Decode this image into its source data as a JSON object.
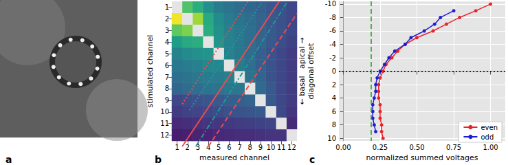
{
  "chart_data": [
    {
      "type": "image",
      "title": "a"
    },
    {
      "type": "heatmap",
      "title": "b",
      "xlabel": "measured channel",
      "ylabel": "stimulated channel",
      "x_categories": [
        "1",
        "2",
        "3",
        "4",
        "5",
        "6",
        "7",
        "8",
        "9",
        "10",
        "11",
        "12"
      ],
      "y_categories": [
        "1",
        "2",
        "3",
        "4",
        "5",
        "6",
        "7",
        "8",
        "9",
        "10",
        "11",
        "12"
      ],
      "color_range": [
        0,
        1
      ],
      "cells": [
        [
          null,
          0.72,
          0.62,
          0.5,
          0.42,
          0.38,
          0.35,
          0.33,
          0.3,
          0.28,
          0.25,
          0.22
        ],
        [
          0.98,
          null,
          0.85,
          0.6,
          0.48,
          0.42,
          0.38,
          0.35,
          0.32,
          0.28,
          0.25,
          0.22
        ],
        [
          0.75,
          0.8,
          null,
          0.62,
          0.5,
          0.44,
          0.4,
          0.36,
          0.32,
          0.28,
          0.25,
          0.22
        ],
        [
          0.55,
          0.6,
          0.62,
          null,
          0.52,
          0.45,
          0.4,
          0.36,
          0.32,
          0.28,
          0.24,
          0.2
        ],
        [
          0.45,
          0.48,
          0.5,
          0.52,
          null,
          0.45,
          0.4,
          0.35,
          0.3,
          0.26,
          0.22,
          0.18
        ],
        [
          0.4,
          0.42,
          0.44,
          0.46,
          0.46,
          null,
          0.42,
          0.36,
          0.3,
          0.26,
          0.22,
          0.18
        ],
        [
          0.36,
          0.38,
          0.4,
          0.42,
          0.42,
          0.44,
          null,
          0.38,
          0.32,
          0.26,
          0.22,
          0.18
        ],
        [
          0.33,
          0.35,
          0.36,
          0.38,
          0.38,
          0.4,
          0.4,
          null,
          0.34,
          0.28,
          0.22,
          0.18
        ],
        [
          0.22,
          0.24,
          0.25,
          0.27,
          0.28,
          0.3,
          0.3,
          0.32,
          null,
          0.28,
          0.22,
          0.18
        ],
        [
          0.18,
          0.2,
          0.21,
          0.22,
          0.23,
          0.25,
          0.26,
          0.27,
          0.28,
          null,
          0.22,
          0.16
        ],
        [
          0.12,
          0.13,
          0.14,
          0.15,
          0.16,
          0.17,
          0.18,
          0.19,
          0.2,
          0.21,
          null,
          0.12
        ],
        [
          0.08,
          0.09,
          0.1,
          0.1,
          0.11,
          0.12,
          0.13,
          0.13,
          0.14,
          0.15,
          0.15,
          null
        ]
      ],
      "diagonals": [
        {
          "color": "#f04a4a",
          "line_style": "dotted",
          "x": [
            1.5,
            7.8
          ],
          "y": [
            9,
            0.5
          ]
        },
        {
          "color": "#1a9a9a",
          "line_style": "dotted",
          "x": [
            2.2,
            9.2
          ],
          "y": [
            9.5,
            0.5
          ]
        },
        {
          "color": "#f04a4a",
          "line_style": "solid",
          "x": [
            1.5,
            10.8
          ],
          "y": [
            12.5,
            0.5
          ]
        },
        {
          "color": "#1a9a9a",
          "line_style": "dashdot",
          "x": [
            2.8,
            11.6
          ],
          "y": [
            12.5,
            0.5
          ]
        },
        {
          "color": "#f04a4a",
          "line_style": "dashed",
          "x": [
            4,
            12.5
          ],
          "y": [
            12.5,
            1.5
          ]
        }
      ],
      "grid": false
    },
    {
      "type": "line",
      "title": "c",
      "xlabel": "normalized summed voltages",
      "ylabel": [
        "← basal   apical →",
        "diagonal offset"
      ],
      "xlim": [
        -0.03,
        1.1
      ],
      "xticks": [
        {
          "value": 0,
          "label": "0.00"
        },
        {
          "value": 0.25,
          "label": "0.25"
        },
        {
          "value": 0.5,
          "label": "0.50"
        },
        {
          "value": 0.75,
          "label": "0.75"
        },
        {
          "value": 1,
          "label": "1.00"
        }
      ],
      "ylim": [
        10.4,
        -10.4
      ],
      "yticks": [
        -10,
        -8,
        -6,
        -4,
        -2,
        0,
        2,
        4,
        6,
        8,
        10
      ],
      "grid": true,
      "legend": "lower right",
      "reference_lines": [
        {
          "axis": "x",
          "value": 0.19,
          "color": "#1f9a1f",
          "line_style": "dashed"
        },
        {
          "axis": "y",
          "value": 0,
          "color": "#000000",
          "line_style": "dotted"
        }
      ],
      "series": [
        {
          "name": "even",
          "color": "#e8242b",
          "marker": "circle",
          "offsets": [
            -10,
            -9,
            -8,
            -7,
            -6,
            -5,
            -4,
            -3,
            -2,
            -1,
            0,
            1,
            2,
            3,
            4,
            5,
            6,
            7,
            8,
            9,
            10
          ],
          "values": [
            1.0,
            0.9,
            0.79,
            0.7,
            0.61,
            0.5,
            0.42,
            0.37,
            0.33,
            0.29,
            0.27,
            0.25,
            0.24,
            0.24,
            0.24,
            0.25,
            0.25,
            0.25,
            0.26,
            0.26,
            0.27
          ]
        },
        {
          "name": "odd",
          "color": "#1f1fd0",
          "marker": "circle",
          "offsets": [
            -9,
            -8,
            -7,
            -6,
            -5,
            -4,
            -3,
            -2,
            -1,
            0,
            1,
            2,
            3,
            4,
            5,
            6,
            7,
            8,
            9
          ],
          "values": [
            0.75,
            0.66,
            0.62,
            0.55,
            0.46,
            0.42,
            0.35,
            0.31,
            0.28,
            0.25,
            0.23,
            0.22,
            0.22,
            0.21,
            0.2,
            0.2,
            0.2,
            0.21,
            0.22
          ]
        }
      ]
    }
  ]
}
